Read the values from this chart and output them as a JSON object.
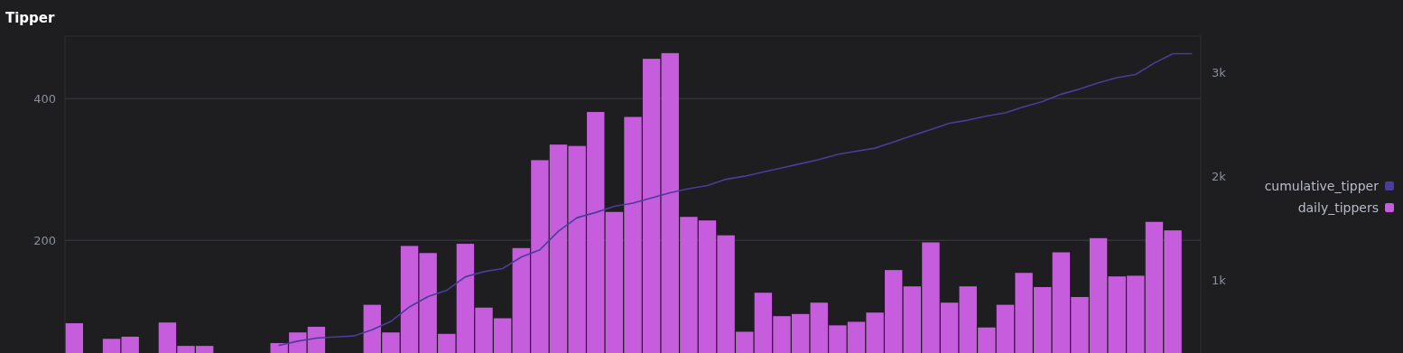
{
  "chart_data": {
    "type": "bar",
    "title": "Tipper",
    "categories": [
      null,
      null,
      null,
      null,
      null,
      null,
      null,
      null,
      null,
      null,
      null,
      null,
      null,
      null,
      null,
      null,
      null,
      null,
      null,
      null,
      null,
      null,
      null,
      null,
      null,
      null,
      null,
      null,
      null,
      null,
      null,
      null,
      null,
      null,
      null,
      null,
      null,
      null,
      null,
      null,
      null,
      null,
      null,
      null,
      null,
      null,
      null,
      null,
      null,
      null,
      null,
      null,
      null,
      null,
      null,
      null,
      null,
      null,
      null,
      null,
      null
    ],
    "series": [
      {
        "name": "daily_tippers",
        "color": "#c65ddd",
        "values": [
          83,
          null,
          61,
          64,
          null,
          84,
          51,
          51,
          null,
          null,
          null,
          55,
          70,
          78,
          null,
          null,
          109,
          70,
          192,
          182,
          68,
          195,
          105,
          90,
          189,
          313,
          335,
          333,
          381,
          240,
          374,
          456,
          464,
          233,
          228,
          207,
          71,
          126,
          93,
          96,
          112,
          80,
          85,
          98,
          158,
          135,
          197,
          112,
          135,
          77,
          109,
          154,
          134,
          183,
          120,
          203,
          149,
          150,
          226,
          214,
          null
        ]
      },
      {
        "name": "cumulative_tipper",
        "type": "line",
        "axis": "y2",
        "color": "#4a3d9a",
        "values": [
          null,
          null,
          null,
          null,
          null,
          null,
          null,
          null,
          null,
          null,
          null,
          370,
          410,
          440,
          450,
          460,
          520,
          600,
          740,
          840,
          900,
          1030,
          1080,
          1110,
          1220,
          1290,
          1470,
          1600,
          1650,
          1710,
          1740,
          1790,
          1840,
          1880,
          1910,
          1970,
          2000,
          2040,
          2080,
          2120,
          2160,
          2210,
          2240,
          2270,
          2330,
          2390,
          2450,
          2510,
          2540,
          2580,
          2610,
          2670,
          2720,
          2790,
          2840,
          2900,
          2950,
          2980,
          3090,
          3180,
          3180
        ]
      }
    ],
    "ylim": [
      41,
      488
    ],
    "yticks": [
      200,
      400
    ],
    "y2lim": [
      296,
      3350
    ],
    "y2ticks": [
      {
        "value": 1000,
        "label": "1k"
      },
      {
        "value": 2000,
        "label": "2k"
      },
      {
        "value": 3000,
        "label": "3k"
      }
    ],
    "grid": "y",
    "legend": "right"
  }
}
